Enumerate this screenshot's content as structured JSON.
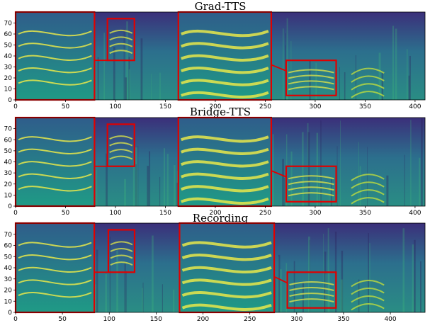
{
  "chart_data": [
    {
      "type": "heatmap",
      "title": "Grad-TTS",
      "xlim": [
        0,
        410
      ],
      "ylim": [
        0,
        80
      ],
      "xticks": [
        0,
        50,
        100,
        150,
        200,
        250,
        300,
        350,
        400
      ],
      "yticks": [
        0,
        10,
        20,
        30,
        40,
        50,
        60,
        70
      ],
      "zooms": [
        {
          "src": [
            92,
            36,
            27,
            38
          ],
          "dst": [
            0,
            0,
            79,
            80
          ]
        },
        {
          "src": [
            271,
            4,
            50,
            32
          ],
          "dst": [
            163,
            0,
            93,
            80
          ]
        }
      ]
    },
    {
      "type": "heatmap",
      "title": "Bridge-TTS",
      "xlim": [
        0,
        410
      ],
      "ylim": [
        0,
        80
      ],
      "xticks": [
        0,
        50,
        100,
        150,
        200,
        250,
        300,
        350,
        400
      ],
      "yticks": [
        0,
        10,
        20,
        30,
        40,
        50,
        60,
        70
      ],
      "zooms": [
        {
          "src": [
            92,
            36,
            27,
            38
          ],
          "dst": [
            0,
            0,
            79,
            80
          ]
        },
        {
          "src": [
            271,
            4,
            50,
            32
          ],
          "dst": [
            163,
            0,
            93,
            80
          ]
        }
      ]
    },
    {
      "type": "heatmap",
      "title": "Recording",
      "xlim": [
        0,
        437
      ],
      "ylim": [
        0,
        80
      ],
      "xticks": [
        0,
        50,
        100,
        150,
        200,
        250,
        300,
        350,
        400
      ],
      "yticks": [
        0,
        10,
        20,
        30,
        40,
        50,
        60,
        70
      ],
      "zooms": [
        {
          "src": [
            99,
            36,
            28,
            38
          ],
          "dst": [
            0,
            0,
            84,
            80
          ]
        },
        {
          "src": [
            290,
            4,
            52,
            32
          ],
          "dst": [
            175,
            0,
            101,
            80
          ]
        }
      ]
    }
  ],
  "colors": {
    "zoom_box": "#e00000",
    "cmap_low": "#440154",
    "cmap_mid": "#21918c",
    "cmap_high": "#fde725"
  }
}
